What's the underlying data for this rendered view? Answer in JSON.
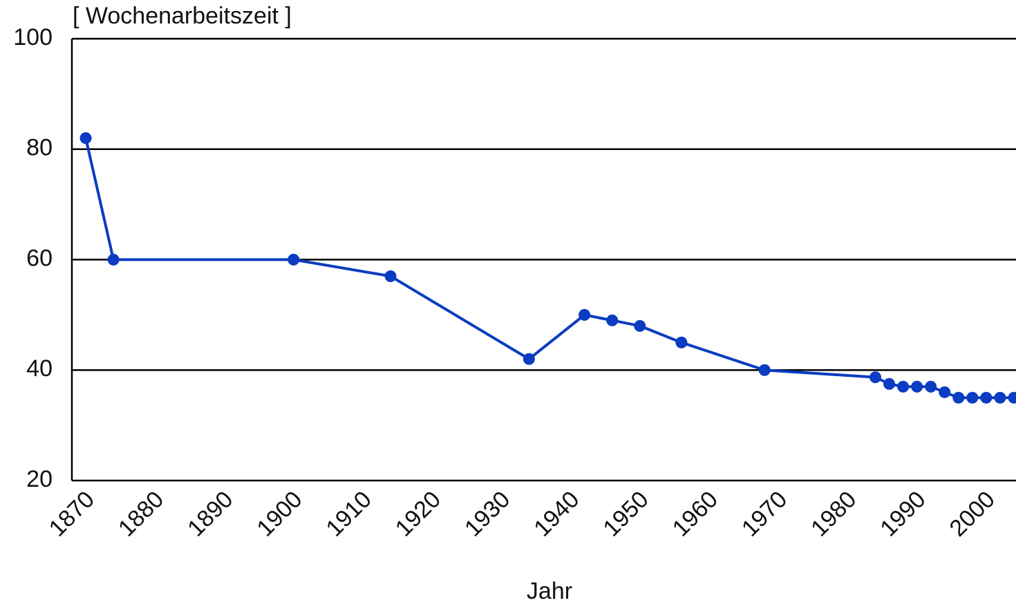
{
  "chart_data": {
    "type": "line",
    "y_label": "[ Wochenarbeitszeit ]",
    "x_label": "Jahr",
    "x": [
      1870,
      1874,
      1900,
      1914,
      1934,
      1942,
      1946,
      1950,
      1956,
      1968,
      1984,
      1986,
      1988,
      1990,
      1992,
      1994,
      1996,
      1998,
      2000,
      2002,
      2004
    ],
    "series": [
      {
        "color": "#0b3cc1",
        "values": [
          82,
          60,
          60,
          57,
          42,
          50,
          49,
          48,
          45,
          40,
          38.7,
          37.5,
          37,
          37,
          37,
          36,
          35,
          35,
          35,
          35,
          35
        ]
      }
    ],
    "xlim": [
      1868,
      2004.3
    ],
    "xticks": [
      1870,
      1880,
      1890,
      1900,
      1910,
      1920,
      1930,
      1940,
      1950,
      1960,
      1970,
      1980,
      1990,
      2000
    ],
    "ylim": [
      20,
      100
    ],
    "yticks": [
      20,
      40,
      60,
      80,
      100
    ],
    "grid": true
  }
}
